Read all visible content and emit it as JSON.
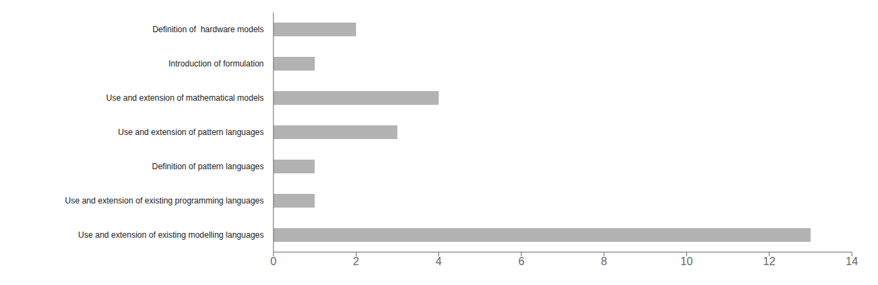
{
  "chart_data": {
    "type": "bar",
    "orientation": "horizontal",
    "categories": [
      "Use and extension of existing modelling languages",
      "Use and extension of existing programming languages",
      "Definition of pattern languages",
      "Use and extension of pattern languages",
      "Use and extension of mathematical models",
      "Introduction of formulation",
      "Definition of  hardware models"
    ],
    "values": [
      13,
      1,
      1,
      3,
      4,
      1,
      2
    ],
    "color": "#b2b2b2",
    "xlim": [
      0,
      14
    ],
    "xticks": [
      0,
      2,
      4,
      6,
      8,
      10,
      12,
      14
    ],
    "grid": false
  }
}
